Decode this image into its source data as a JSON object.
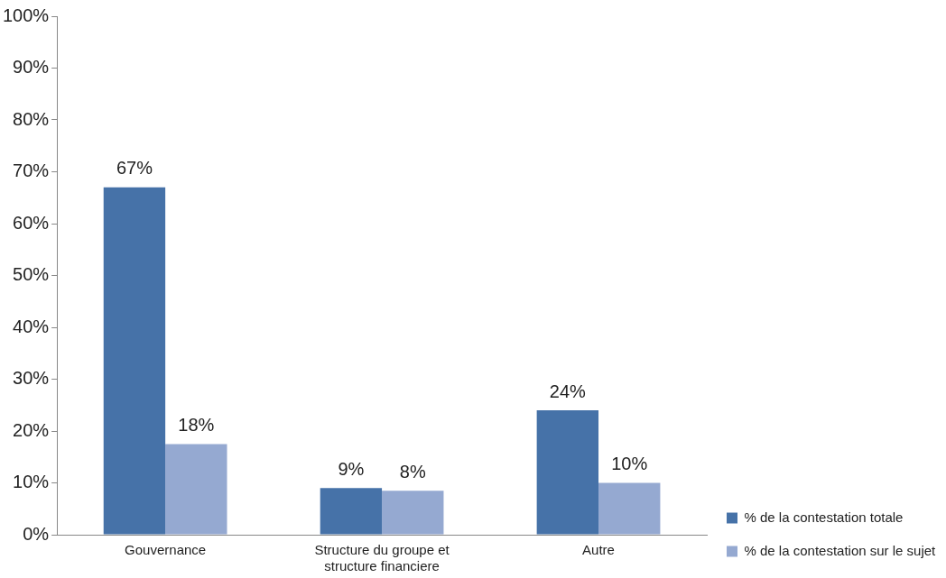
{
  "chart_data": {
    "type": "bar",
    "categories": [
      "Gouvernance",
      "Structure du groupe et structure financiere",
      "Autre"
    ],
    "series": [
      {
        "name": "% de la contestation totale",
        "color": "#4672a8",
        "values": [
          67,
          9,
          24
        ],
        "value_labels": [
          "67%",
          "9%",
          "24%"
        ]
      },
      {
        "name": "% de la contestation sur le sujet",
        "color": "#95a9d1",
        "values": [
          17.5,
          8.5,
          10
        ],
        "value_labels": [
          "18%",
          "8%",
          "10%"
        ]
      }
    ],
    "ylim": [
      0,
      100
    ],
    "yticks": [
      {
        "value": 0,
        "label": "0%"
      },
      {
        "value": 10,
        "label": "10%"
      },
      {
        "value": 20,
        "label": "20%"
      },
      {
        "value": 30,
        "label": "30%"
      },
      {
        "value": 40,
        "label": "40%"
      },
      {
        "value": 50,
        "label": "50%"
      },
      {
        "value": 60,
        "label": "60%"
      },
      {
        "value": 70,
        "label": "70%"
      },
      {
        "value": 80,
        "label": "80%"
      },
      {
        "value": 90,
        "label": "90%"
      },
      {
        "value": 100,
        "label": "100%"
      }
    ],
    "grid": false,
    "legend": "bottom right"
  }
}
